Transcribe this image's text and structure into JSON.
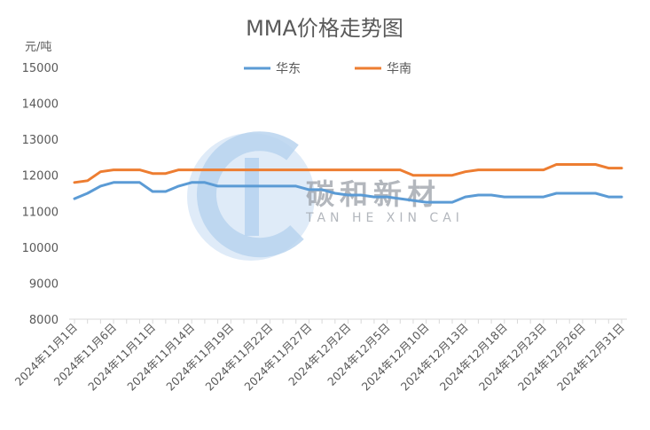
{
  "chart_data": {
    "type": "line",
    "title": "MMA价格走势图",
    "ylabel": "元/吨",
    "xlabel": "",
    "ylim": [
      8000,
      15000
    ],
    "yticks": [
      8000,
      9000,
      10000,
      11000,
      12000,
      13000,
      14000,
      15000
    ],
    "grid": false,
    "legend_position": "top",
    "x": [
      "2024年11月1日",
      "2024年11月4日",
      "2024年11月5日",
      "2024年11月6日",
      "2024年11月7日",
      "2024年11月8日",
      "2024年11月11日",
      "2024年11月12日",
      "2024年11月13日",
      "2024年11月14日",
      "2024年11月15日",
      "2024年11月18日",
      "2024年11月19日",
      "2024年11月20日",
      "2024年11月21日",
      "2024年11月22日",
      "2024年11月25日",
      "2024年11月26日",
      "2024年11月27日",
      "2024年11月28日",
      "2024年11月29日",
      "2024年12月2日",
      "2024年12月3日",
      "2024年12月4日",
      "2024年12月5日",
      "2024年12月6日",
      "2024年12月9日",
      "2024年12月10日",
      "2024年12月11日",
      "2024年12月12日",
      "2024年12月13日",
      "2024年12月16日",
      "2024年12月17日",
      "2024年12月18日",
      "2024年12月19日",
      "2024年12月20日",
      "2024年12月23日",
      "2024年12月24日",
      "2024年12月25日",
      "2024年12月26日",
      "2024年12月27日",
      "2024年12月30日",
      "2024年12月31日"
    ],
    "tick_labels": [
      "2024年11月1日",
      "2024年11月6日",
      "2024年11月11日",
      "2024年11月14日",
      "2024年11月19日",
      "2024年11月22日",
      "2024年11月27日",
      "2024年12月2日",
      "2024年12月5日",
      "2024年12月10日",
      "2024年12月13日",
      "2024年12月18日",
      "2024年12月23日",
      "2024年12月26日",
      "2024年12月31日"
    ],
    "series": [
      {
        "name": "华东",
        "color": "#5b9bd5",
        "values": [
          11350,
          11500,
          11700,
          11800,
          11800,
          11800,
          11550,
          11550,
          11700,
          11800,
          11800,
          11700,
          11700,
          11700,
          11700,
          11700,
          11700,
          11700,
          11600,
          11600,
          11500,
          11450,
          11450,
          11400,
          11400,
          11350,
          11300,
          11250,
          11250,
          11250,
          11400,
          11450,
          11450,
          11400,
          11400,
          11400,
          11400,
          11500,
          11500,
          11500,
          11500,
          11400,
          11400
        ]
      },
      {
        "name": "华南",
        "color": "#ed7d31",
        "values": [
          11800,
          11850,
          12100,
          12150,
          12150,
          12150,
          12050,
          12050,
          12150,
          12150,
          12150,
          12150,
          12150,
          12150,
          12150,
          12150,
          12150,
          12150,
          12150,
          12150,
          12150,
          12150,
          12150,
          12150,
          12150,
          12150,
          12000,
          12000,
          12000,
          12000,
          12100,
          12150,
          12150,
          12150,
          12150,
          12150,
          12150,
          12300,
          12300,
          12300,
          12300,
          12200,
          12200
        ]
      }
    ]
  },
  "watermark": {
    "cn": "碳和新材",
    "en": "TAN  HE  XIN  CAI"
  }
}
